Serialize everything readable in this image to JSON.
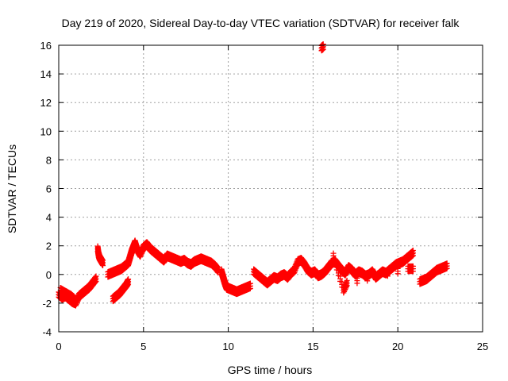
{
  "chart_data": {
    "type": "scatter",
    "title": "Day 219 of 2020, Sidereal Day-to-day VTEC variation (SDTVAR) for receiver falk",
    "xlabel": "GPS time / hours",
    "ylabel": "SDTVAR / TECUs",
    "xlim": [
      0,
      25
    ],
    "ylim": [
      -4,
      16
    ],
    "xticks": [
      "0",
      "5",
      "10",
      "15",
      "20",
      "25"
    ],
    "yticks": [
      "-4",
      "-2",
      "0",
      "2",
      "4",
      "6",
      "8",
      "10",
      "12",
      "14",
      "16"
    ],
    "grid": true,
    "series": [
      {
        "name": "SDTVAR",
        "color": "#ff0000",
        "marker": "plus",
        "segments": [
          [
            [
              0.0,
              -1.4
            ],
            [
              0.2,
              -1.6
            ],
            [
              0.4,
              -1.5
            ],
            [
              0.6,
              -1.7
            ],
            [
              0.8,
              -1.9
            ],
            [
              1.0,
              -2.0
            ],
            [
              1.2,
              -1.5
            ],
            [
              1.4,
              -1.3
            ],
            [
              1.6,
              -1.1
            ],
            [
              1.8,
              -0.9
            ],
            [
              2.0,
              -0.6
            ],
            [
              2.2,
              -0.3
            ]
          ],
          [
            [
              0.1,
              -1.1
            ],
            [
              0.4,
              -1.3
            ],
            [
              0.7,
              -1.5
            ],
            [
              0.9,
              -1.7
            ]
          ],
          [
            [
              2.3,
              1.8
            ],
            [
              2.35,
              1.4
            ],
            [
              2.4,
              1.2
            ],
            [
              2.5,
              1.0
            ],
            [
              2.6,
              0.8
            ]
          ],
          [
            [
              2.9,
              0.0
            ],
            [
              3.1,
              0.1
            ],
            [
              3.3,
              0.2
            ],
            [
              3.5,
              0.3
            ],
            [
              3.7,
              0.4
            ],
            [
              3.9,
              0.6
            ],
            [
              4.1,
              0.8
            ],
            [
              4.2,
              1.2
            ],
            [
              4.3,
              1.6
            ],
            [
              4.4,
              1.9
            ],
            [
              4.5,
              2.2
            ],
            [
              4.6,
              1.8
            ],
            [
              4.8,
              1.4
            ],
            [
              5.0,
              1.9
            ],
            [
              5.2,
              2.1
            ],
            [
              5.4,
              1.8
            ],
            [
              5.6,
              1.6
            ],
            [
              5.8,
              1.4
            ],
            [
              6.0,
              1.2
            ],
            [
              6.2,
              1.0
            ],
            [
              6.4,
              1.3
            ],
            [
              6.6,
              1.2
            ],
            [
              6.8,
              1.1
            ],
            [
              7.0,
              1.0
            ],
            [
              7.2,
              0.9
            ],
            [
              7.4,
              1.0
            ],
            [
              7.6,
              0.8
            ],
            [
              7.8,
              0.7
            ],
            [
              8.0,
              0.9
            ],
            [
              8.2,
              1.0
            ],
            [
              8.4,
              1.1
            ],
            [
              8.6,
              1.0
            ],
            [
              8.8,
              0.9
            ],
            [
              9.0,
              0.8
            ],
            [
              9.2,
              0.6
            ],
            [
              9.4,
              0.3
            ]
          ],
          [
            [
              3.2,
              -1.7
            ],
            [
              3.4,
              -1.5
            ],
            [
              3.6,
              -1.3
            ],
            [
              3.8,
              -1.0
            ],
            [
              4.0,
              -0.7
            ],
            [
              4.1,
              -0.5
            ]
          ],
          [
            [
              9.6,
              0.2
            ],
            [
              9.7,
              -0.2
            ],
            [
              9.8,
              -0.6
            ],
            [
              9.9,
              -0.9
            ],
            [
              10.1,
              -1.0
            ],
            [
              10.3,
              -1.1
            ],
            [
              10.5,
              -1.2
            ],
            [
              10.7,
              -1.1
            ],
            [
              10.9,
              -1.0
            ],
            [
              11.1,
              -0.9
            ],
            [
              11.3,
              -0.8
            ]
          ],
          [
            [
              11.5,
              0.2
            ],
            [
              11.7,
              0.0
            ],
            [
              11.9,
              -0.2
            ],
            [
              12.1,
              -0.4
            ],
            [
              12.3,
              -0.6
            ],
            [
              12.5,
              -0.4
            ],
            [
              12.7,
              -0.2
            ],
            [
              12.9,
              -0.3
            ],
            [
              13.1,
              -0.1
            ],
            [
              13.3,
              0.0
            ],
            [
              13.5,
              -0.2
            ],
            [
              13.7,
              0.1
            ],
            [
              13.9,
              0.3
            ],
            [
              14.1,
              0.9
            ],
            [
              14.3,
              1.0
            ],
            [
              14.5,
              0.7
            ],
            [
              14.7,
              0.3
            ],
            [
              14.9,
              0.1
            ],
            [
              15.1,
              0.2
            ],
            [
              15.3,
              -0.1
            ],
            [
              15.5,
              0.0
            ],
            [
              15.7,
              0.2
            ],
            [
              15.9,
              0.5
            ],
            [
              16.1,
              0.8
            ],
            [
              16.3,
              0.9
            ],
            [
              16.5,
              0.6
            ],
            [
              16.7,
              0.3
            ],
            [
              16.9,
              0.1
            ],
            [
              17.1,
              0.5
            ],
            [
              17.3,
              0.3
            ],
            [
              17.5,
              0.0
            ],
            [
              17.7,
              0.2
            ],
            [
              17.9,
              0.1
            ],
            [
              18.1,
              -0.1
            ],
            [
              18.3,
              0.0
            ],
            [
              18.5,
              0.2
            ],
            [
              18.7,
              -0.2
            ],
            [
              18.9,
              0.0
            ],
            [
              19.1,
              0.2
            ],
            [
              19.3,
              0.1
            ],
            [
              19.5,
              0.3
            ],
            [
              19.7,
              0.5
            ],
            [
              19.9,
              0.7
            ],
            [
              20.1,
              0.8
            ],
            [
              20.3,
              0.9
            ],
            [
              20.5,
              1.1
            ],
            [
              20.7,
              1.3
            ],
            [
              20.9,
              1.5
            ]
          ],
          [
            [
              16.2,
              1.3
            ],
            [
              16.8,
              -1.1
            ],
            [
              17.0,
              -0.6
            ],
            [
              20.6,
              0.4
            ],
            [
              20.9,
              0.4
            ]
          ],
          [
            [
              21.3,
              -0.5
            ],
            [
              21.5,
              -0.4
            ],
            [
              21.7,
              -0.3
            ],
            [
              21.9,
              -0.1
            ],
            [
              22.1,
              0.1
            ],
            [
              22.3,
              0.3
            ],
            [
              22.5,
              0.4
            ],
            [
              22.7,
              0.5
            ],
            [
              22.9,
              0.6
            ]
          ],
          [
            [
              15.5,
              15.8
            ],
            [
              15.6,
              15.9
            ]
          ]
        ]
      }
    ]
  }
}
